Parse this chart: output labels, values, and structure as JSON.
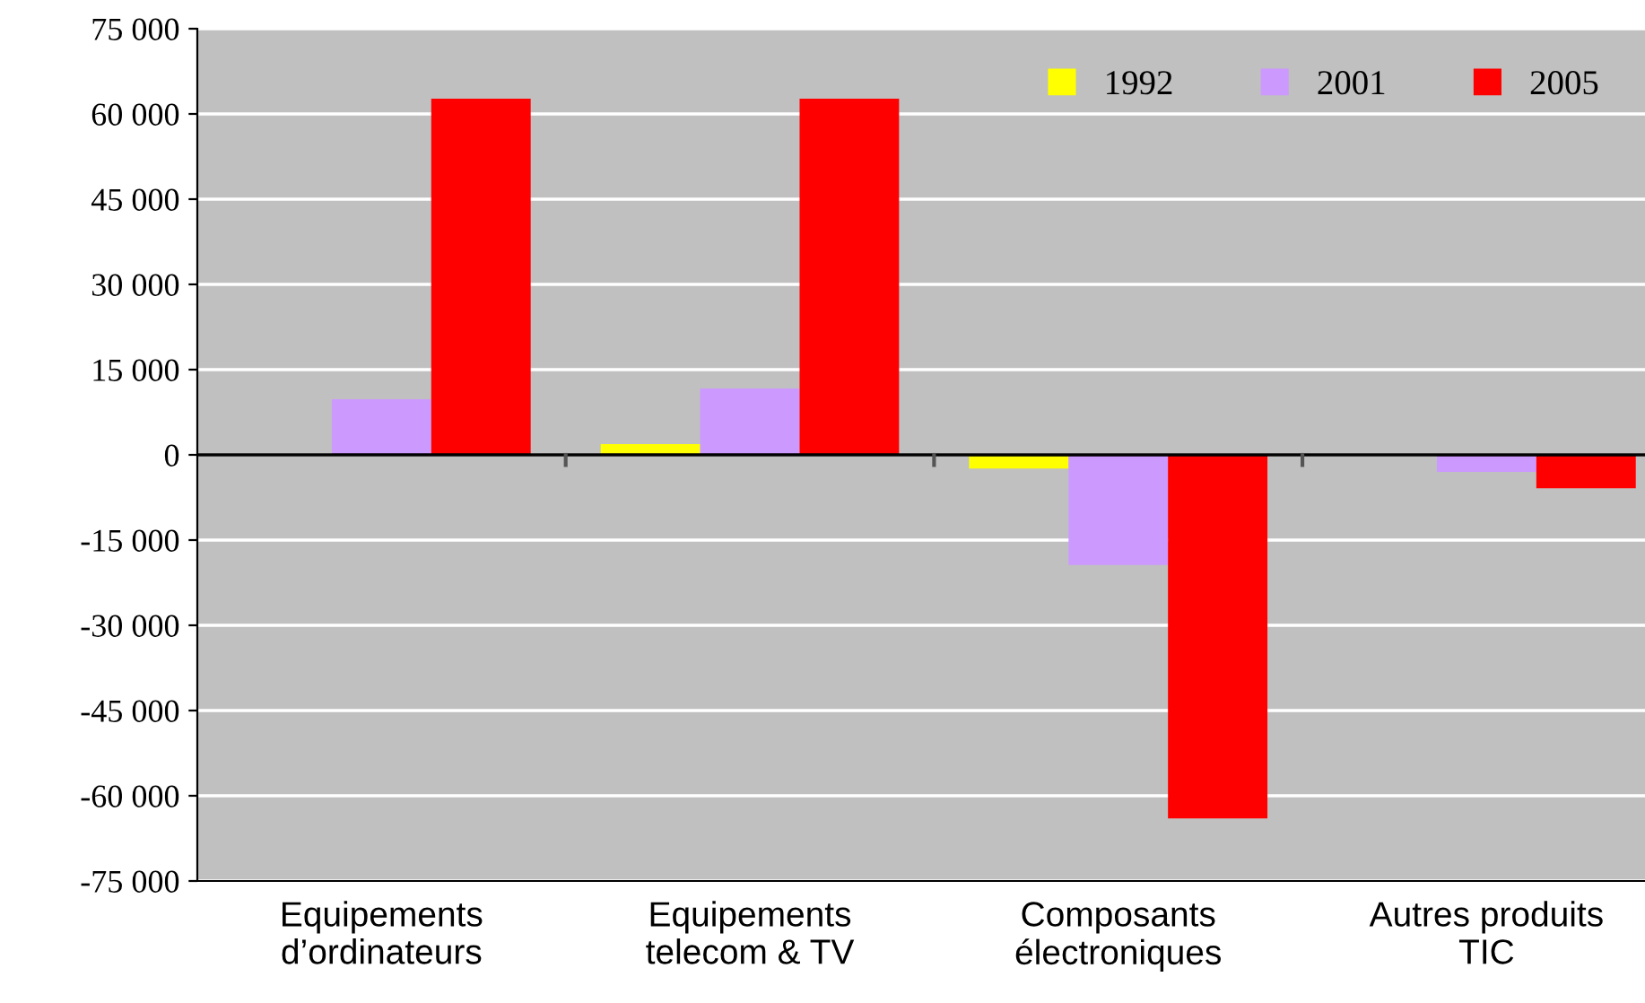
{
  "chart_data": {
    "type": "bar",
    "categories": [
      "Equipements\nd’ordinateurs",
      "Equipements\ntelecom & TV",
      "Composants\nélectroniques",
      "Autres produits\nTIC"
    ],
    "series": [
      {
        "name": "1992",
        "color": "#ffff00",
        "values": [
          0,
          1900,
          -2400,
          null
        ]
      },
      {
        "name": "2001",
        "color": "#cc99ff",
        "values": [
          9800,
          11700,
          -19400,
          -3000
        ]
      },
      {
        "name": "2005",
        "color": "#ff0000",
        "values": [
          62700,
          62700,
          -64000,
          -5900
        ]
      }
    ],
    "ylim": [
      -75000,
      75000
    ],
    "yticks": [
      {
        "value": -75000,
        "label": "-75 000"
      },
      {
        "value": -60000,
        "label": "-60 000"
      },
      {
        "value": -45000,
        "label": "-45 000"
      },
      {
        "value": -30000,
        "label": "-30 000"
      },
      {
        "value": -15000,
        "label": "-15 000"
      },
      0,
      {
        "value": 15000,
        "label": "15 000"
      },
      {
        "value": 30000,
        "label": "30 000"
      },
      {
        "value": 45000,
        "label": "45 000"
      },
      {
        "value": 60000,
        "label": "60 000"
      },
      {
        "value": 75000,
        "label": "75 000"
      }
    ],
    "grid": "y",
    "legend": "top right"
  }
}
